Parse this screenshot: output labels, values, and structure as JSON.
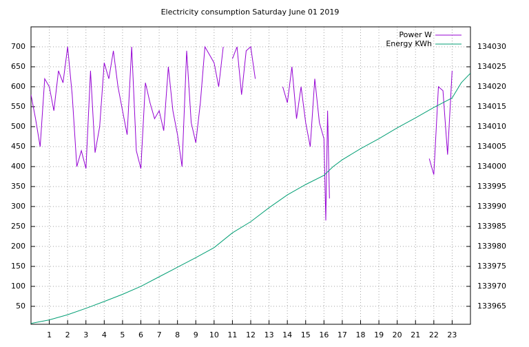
{
  "chart_data": {
    "type": "line",
    "title": "Electricity consumption Saturday June 01 2019",
    "xlim": [
      0,
      24
    ],
    "xticks": [
      1,
      2,
      3,
      4,
      5,
      6,
      7,
      8,
      9,
      10,
      11,
      12,
      13,
      14,
      15,
      16,
      17,
      18,
      19,
      20,
      21,
      22,
      23
    ],
    "ylim": [
      5,
      750
    ],
    "yticks": [
      50,
      100,
      150,
      200,
      250,
      300,
      350,
      400,
      450,
      500,
      550,
      600,
      650,
      700
    ],
    "y2lim": [
      133960.5,
      134035
    ],
    "y2ticks": [
      133965,
      133970,
      133975,
      133980,
      133985,
      133990,
      133995,
      134000,
      134005,
      134010,
      134015,
      134020,
      134025,
      134030
    ],
    "grid": true,
    "legend": "top-right",
    "series": [
      {
        "name": "Power W",
        "color": "#9400d3",
        "x": [
          0,
          0.25,
          0.5,
          0.75,
          1,
          1.25,
          1.5,
          1.75,
          2,
          2.25,
          2.5,
          2.75,
          3,
          3.25,
          3.5,
          3.75,
          4,
          4.25,
          4.5,
          4.75,
          5,
          5.25,
          5.5,
          5.75,
          6,
          6.25,
          6.5,
          6.75,
          7,
          7.25,
          7.5,
          7.75,
          8,
          8.25,
          8.5,
          8.75,
          9,
          9.25,
          9.5,
          9.75,
          10,
          10.25,
          10.5,
          10.75,
          11,
          11.25,
          11.5,
          11.75,
          12,
          12.25,
          12.5,
          13.75,
          14,
          14.25,
          14.5,
          14.75,
          15,
          15.25,
          15.5,
          15.75,
          16,
          16.1,
          16.2,
          16.3,
          16.5,
          21.75,
          22,
          22.25,
          22.5,
          22.75,
          23,
          23.2
        ],
        "values": [
          580,
          520,
          450,
          620,
          600,
          540,
          640,
          610,
          700,
          580,
          400,
          440,
          395,
          640,
          435,
          500,
          660,
          620,
          690,
          600,
          540,
          480,
          700,
          440,
          395,
          610,
          560,
          520,
          540,
          490,
          650,
          540,
          480,
          400,
          690,
          510,
          460,
          560,
          700,
          680,
          660,
          600,
          700,
          null,
          670,
          700,
          580,
          690,
          700,
          620,
          null,
          600,
          560,
          650,
          520,
          600,
          510,
          450,
          620,
          510,
          470,
          265,
          540,
          320,
          null,
          420,
          380,
          600,
          590,
          430,
          640,
          null
        ]
      },
      {
        "name": "Energy KWh",
        "color": "#009e73",
        "axis": "y2",
        "x": [
          0,
          1,
          2,
          3,
          4,
          5,
          6,
          7,
          8,
          9,
          10,
          11,
          12,
          13,
          14,
          15,
          16,
          16.5,
          17,
          18,
          19,
          20,
          21,
          22,
          23,
          23.5,
          24
        ],
        "values": [
          133960.7,
          133961.6,
          133962.9,
          133964.5,
          133966.2,
          133968,
          133970,
          133972.4,
          133974.8,
          133977.2,
          133979.7,
          133983.4,
          133986.2,
          133989.7,
          133992.9,
          133995.5,
          133997.8,
          134000,
          134001.7,
          134004.5,
          134007,
          134009.7,
          134012.2,
          134014.8,
          134017.2,
          134021,
          134023.4
        ]
      }
    ]
  }
}
